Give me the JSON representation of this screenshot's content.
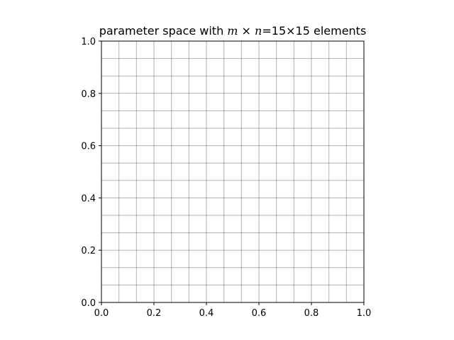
{
  "chart_data": {
    "type": "line",
    "title": {
      "prefix": "parameter space with ",
      "m": "m",
      "times": " × ",
      "n": "n",
      "suffix": "=15×15 elements"
    },
    "xlabel": "",
    "ylabel": "",
    "xlim": [
      0.0,
      1.0
    ],
    "ylim": [
      0.0,
      1.0
    ],
    "x_ticks": [
      0.0,
      0.2,
      0.4,
      0.6,
      0.8,
      1.0
    ],
    "x_tick_labels": [
      "0.0",
      "0.2",
      "0.4",
      "0.6",
      "0.8",
      "1.0"
    ],
    "y_ticks": [
      0.0,
      0.2,
      0.4,
      0.6,
      0.8,
      1.0
    ],
    "y_tick_labels": [
      "0.0",
      "0.2",
      "0.4",
      "0.6",
      "0.8",
      "1.0"
    ],
    "grid_divisions": {
      "m": 15,
      "n": 15
    },
    "grid_color": "#000000",
    "grid": true,
    "legend": "none"
  }
}
